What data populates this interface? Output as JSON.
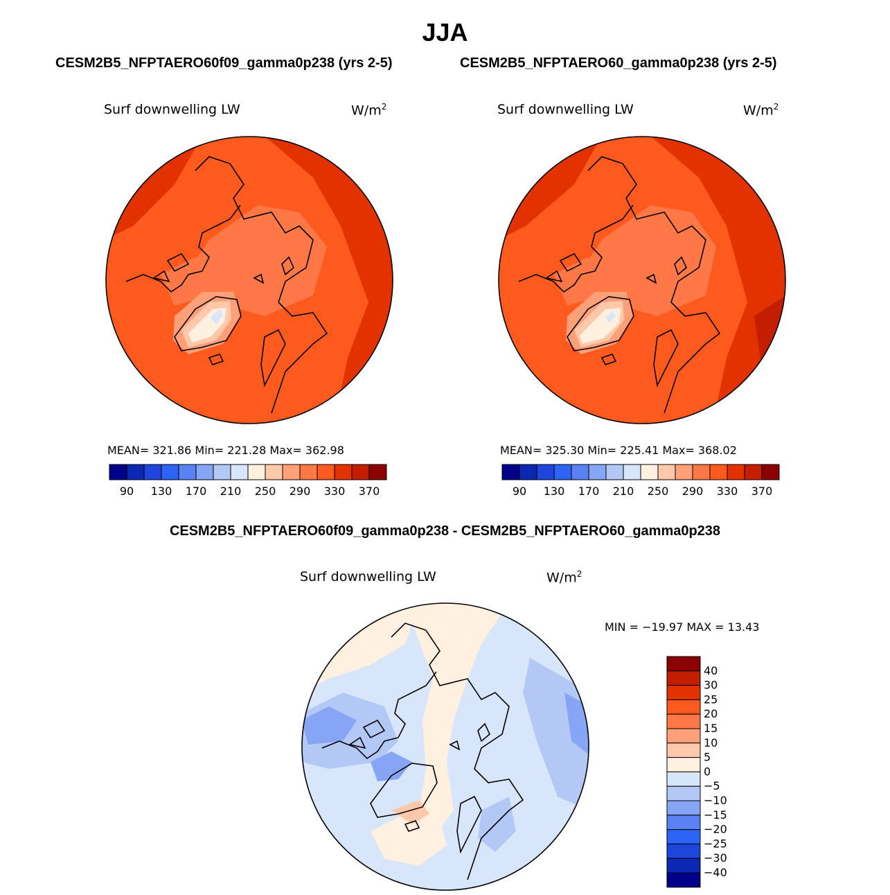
{
  "figure": {
    "title": "JJA",
    "units_base": "W/m",
    "units_exp": "2"
  },
  "panels": [
    {
      "case_title": "CESM2B5_NFPTAERO60f09_gamma0p238 (yrs 2-5)",
      "variable": "Surf downwelling LW",
      "stats_text": "MEAN= 321.86   Min= 221.28   Max= 362.98"
    },
    {
      "case_title": "CESM2B5_NFPTAERO60_gamma0p238 (yrs 2-5)",
      "variable": "Surf downwelling LW",
      "stats_text": "MEAN= 325.30   Min= 225.41   Max= 368.02"
    },
    {
      "case_title": "CESM2B5_NFPTAERO60f09_gamma0p238 - CESM2B5_NFPTAERO60_gamma0p238",
      "variable": "Surf downwelling LW",
      "stats_text": "MIN = −19.97 MAX =   13.43"
    }
  ],
  "chart_data": [
    {
      "type": "heatmap",
      "projection": "north-polar-stereographic",
      "title": "Surf downwelling LW",
      "case": "CESM2B5_NFPTAERO60f09_gamma0p238 (yrs 2-5)",
      "units": "W/m2",
      "mean": 321.86,
      "min": 221.28,
      "max": 362.98,
      "contour_levels": [
        90,
        110,
        130,
        150,
        170,
        190,
        210,
        230,
        250,
        270,
        290,
        310,
        330,
        350,
        370
      ],
      "colorbar_tick_labels": [
        "90",
        "130",
        "170",
        "210",
        "250",
        "290",
        "330",
        "370"
      ],
      "colors": [
        "#00008b",
        "#0a28b4",
        "#1e46dc",
        "#2d64f5",
        "#5a82f5",
        "#87a5f5",
        "#b4c8f5",
        "#d7e6fa",
        "#fff0df",
        "#ffc8aa",
        "#ffa078",
        "#ff7846",
        "#ff5a1e",
        "#e13200",
        "#c31e00",
        "#8b0000"
      ]
    },
    {
      "type": "heatmap",
      "projection": "north-polar-stereographic",
      "title": "Surf downwelling LW",
      "case": "CESM2B5_NFPTAERO60_gamma0p238 (yrs 2-5)",
      "units": "W/m2",
      "mean": 325.3,
      "min": 225.41,
      "max": 368.02,
      "contour_levels": [
        90,
        110,
        130,
        150,
        170,
        190,
        210,
        230,
        250,
        270,
        290,
        310,
        330,
        350,
        370
      ],
      "colorbar_tick_labels": [
        "90",
        "130",
        "170",
        "210",
        "250",
        "290",
        "330",
        "370"
      ],
      "colors": [
        "#00008b",
        "#0a28b4",
        "#1e46dc",
        "#2d64f5",
        "#5a82f5",
        "#87a5f5",
        "#b4c8f5",
        "#d7e6fa",
        "#fff0df",
        "#ffc8aa",
        "#ffa078",
        "#ff7846",
        "#ff5a1e",
        "#e13200",
        "#c31e00",
        "#8b0000"
      ]
    },
    {
      "type": "heatmap",
      "projection": "north-polar-stereographic",
      "title": "Surf downwelling LW",
      "case": "CESM2B5_NFPTAERO60f09_gamma0p238 - CESM2B5_NFPTAERO60_gamma0p238",
      "units": "W/m2",
      "min": -19.97,
      "max": 13.43,
      "contour_levels": [
        40,
        30,
        25,
        20,
        15,
        10,
        5,
        0,
        -5,
        -10,
        -15,
        -20,
        -25,
        -30,
        -40
      ],
      "colorbar_tick_labels": [
        "40",
        "30",
        "25",
        "20",
        "15",
        "10",
        "5",
        "0",
        "−5",
        "−10",
        "−15",
        "−20",
        "−25",
        "−30",
        "−40"
      ],
      "colors": [
        "#8b0000",
        "#c31e00",
        "#e13200",
        "#ff5a1e",
        "#ff7846",
        "#ffa078",
        "#ffc8aa",
        "#fff0df",
        "#d7e6fa",
        "#b4c8f5",
        "#87a5f5",
        "#5a82f5",
        "#2d64f5",
        "#1e46dc",
        "#0a28b4",
        "#00008b"
      ]
    }
  ]
}
